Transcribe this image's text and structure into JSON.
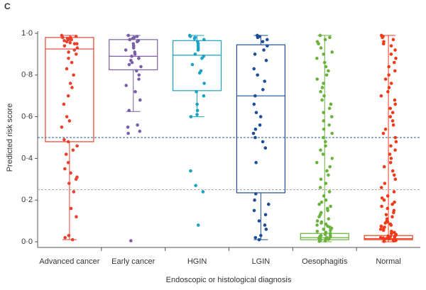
{
  "chart_data": {
    "type": "box",
    "panel_label": "C",
    "ylabel": "Predicted risk score",
    "xlabel": "Endoscopic or histological diagnosis",
    "ylim": [
      0,
      1
    ],
    "yticks": [
      {
        "value": 0,
        "label": "0·0"
      },
      {
        "value": 0.2,
        "label": "0·2"
      },
      {
        "value": 0.4,
        "label": "0·4"
      },
      {
        "value": 0.6,
        "label": "0·6"
      },
      {
        "value": 0.8,
        "label": "0·8"
      },
      {
        "value": 1,
        "label": "1·0"
      }
    ],
    "reference_lines": [
      {
        "value": 0.5,
        "color": "#2a5b9b"
      },
      {
        "value": 0.25,
        "color": "#aaaaaa"
      }
    ],
    "groups": [
      {
        "name": "Advanced cancer",
        "color": "#e8412f",
        "box": {
          "whisker_low": 0.01,
          "q1": 0.48,
          "median": 0.925,
          "q3": 0.98,
          "whisker_high": 0.99
        },
        "values": [
          0.99,
          0.985,
          0.98,
          0.98,
          0.975,
          0.97,
          0.97,
          0.965,
          0.96,
          0.955,
          0.95,
          0.95,
          0.94,
          0.93,
          0.92,
          0.91,
          0.9,
          0.88,
          0.86,
          0.83,
          0.8,
          0.76,
          0.74,
          0.7,
          0.66,
          0.6,
          0.58,
          0.55,
          0.49,
          0.48,
          0.46,
          0.44,
          0.42,
          0.38,
          0.35,
          0.33,
          0.31,
          0.3,
          0.28,
          0.24,
          0.16,
          0.12,
          0.03,
          0.02,
          0.01
        ]
      },
      {
        "name": "Early cancer",
        "color": "#7a5fa8",
        "box": {
          "whisker_low": 0.625,
          "q1": 0.825,
          "median": 0.89,
          "q3": 0.97,
          "whisker_high": 0.99
        },
        "values": [
          0.99,
          0.985,
          0.98,
          0.975,
          0.97,
          0.965,
          0.96,
          0.95,
          0.94,
          0.93,
          0.92,
          0.91,
          0.9,
          0.89,
          0.88,
          0.87,
          0.86,
          0.85,
          0.84,
          0.82,
          0.8,
          0.78,
          0.75,
          0.72,
          0.68,
          0.63,
          0.56,
          0.55,
          0.53,
          0.52,
          0.005
        ]
      },
      {
        "name": "HGIN",
        "color": "#1aa1c3",
        "box": {
          "whisker_low": 0.6,
          "q1": 0.725,
          "median": 0.895,
          "q3": 0.965,
          "whisker_high": 0.99
        },
        "values": [
          0.99,
          0.985,
          0.98,
          0.975,
          0.97,
          0.96,
          0.95,
          0.94,
          0.93,
          0.92,
          0.9,
          0.89,
          0.88,
          0.85,
          0.82,
          0.81,
          0.76,
          0.72,
          0.7,
          0.66,
          0.63,
          0.61,
          0.6,
          0.34,
          0.27,
          0.24,
          0.08
        ]
      },
      {
        "name": "LGIN",
        "color": "#1f4e96",
        "box": {
          "whisker_low": 0.01,
          "q1": 0.235,
          "median": 0.7,
          "q3": 0.945,
          "whisker_high": 0.99
        },
        "values": [
          0.99,
          0.985,
          0.98,
          0.97,
          0.96,
          0.94,
          0.92,
          0.9,
          0.87,
          0.83,
          0.8,
          0.77,
          0.73,
          0.7,
          0.66,
          0.62,
          0.6,
          0.56,
          0.54,
          0.52,
          0.5,
          0.48,
          0.45,
          0.38,
          0.23,
          0.2,
          0.18,
          0.15,
          0.13,
          0.1,
          0.08,
          0.06,
          0.03,
          0.02,
          0.01
        ]
      },
      {
        "name": "Oesophagitis",
        "color": "#6ab23d",
        "box": {
          "whisker_low": 0,
          "q1": 0.01,
          "median": 0.02,
          "q3": 0.04,
          "whisker_high": 0.99
        },
        "values": [
          0.99,
          0.98,
          0.97,
          0.96,
          0.95,
          0.93,
          0.91,
          0.9,
          0.88,
          0.86,
          0.84,
          0.82,
          0.8,
          0.78,
          0.76,
          0.74,
          0.72,
          0.7,
          0.68,
          0.66,
          0.64,
          0.62,
          0.6,
          0.58,
          0.56,
          0.54,
          0.52,
          0.5,
          0.48,
          0.46,
          0.44,
          0.42,
          0.4,
          0.38,
          0.36,
          0.34,
          0.32,
          0.3,
          0.28,
          0.26,
          0.24,
          0.22,
          0.2,
          0.19,
          0.18,
          0.17,
          0.16,
          0.15,
          0.14,
          0.13,
          0.12,
          0.11,
          0.1,
          0.095,
          0.09,
          0.085,
          0.08,
          0.075,
          0.07,
          0.065,
          0.06,
          0.055,
          0.05,
          0.045,
          0.04,
          0.035,
          0.03,
          0.028,
          0.025,
          0.022,
          0.02,
          0.018,
          0.016,
          0.014,
          0.012,
          0.01,
          0.008,
          0.006,
          0.004,
          0.002
        ]
      },
      {
        "name": "Normal",
        "color": "#f03a1a",
        "box": {
          "whisker_low": 0,
          "q1": 0.01,
          "median": 0.015,
          "q3": 0.03,
          "whisker_high": 0.99
        },
        "values": [
          0.99,
          0.985,
          0.98,
          0.97,
          0.96,
          0.95,
          0.94,
          0.92,
          0.9,
          0.88,
          0.86,
          0.84,
          0.82,
          0.8,
          0.78,
          0.76,
          0.74,
          0.72,
          0.7,
          0.68,
          0.66,
          0.64,
          0.62,
          0.6,
          0.58,
          0.56,
          0.54,
          0.52,
          0.5,
          0.48,
          0.46,
          0.44,
          0.42,
          0.4,
          0.38,
          0.36,
          0.34,
          0.32,
          0.3,
          0.28,
          0.26,
          0.24,
          0.22,
          0.21,
          0.2,
          0.19,
          0.18,
          0.17,
          0.16,
          0.15,
          0.14,
          0.13,
          0.12,
          0.11,
          0.1,
          0.095,
          0.09,
          0.085,
          0.08,
          0.075,
          0.07,
          0.065,
          0.06,
          0.055,
          0.05,
          0.045,
          0.04,
          0.035,
          0.03,
          0.028,
          0.025,
          0.022,
          0.02,
          0.018,
          0.016,
          0.014,
          0.012,
          0.01,
          0.008,
          0.006,
          0.004,
          0.002
        ]
      }
    ]
  }
}
